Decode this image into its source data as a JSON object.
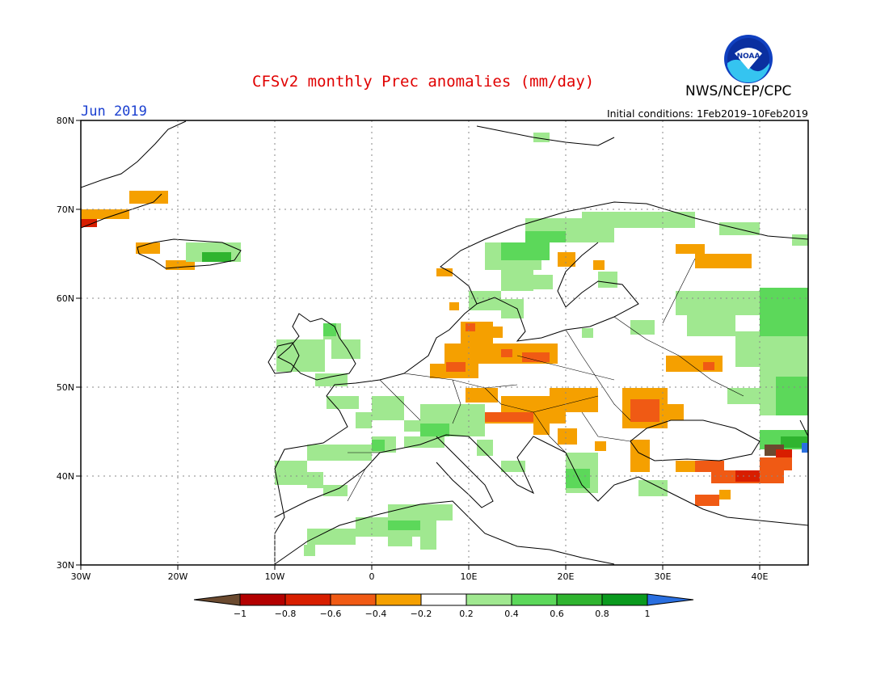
{
  "title": "CFSv2 monthly Prec anomalies (mm/day)",
  "organization": "NWS/NCEP/CPC",
  "logo_text": "NOAA",
  "month": "Jun 2019",
  "initial_conditions": "Initial conditions: 1Feb2019–10Feb2019",
  "map": {
    "lat_labels": [
      "80N",
      "70N",
      "60N",
      "50N",
      "40N",
      "30N"
    ],
    "lon_labels": [
      "30W",
      "20W",
      "10W",
      "0",
      "10E",
      "20E",
      "30E",
      "40E"
    ]
  },
  "colorbar": {
    "tick_labels": [
      "−1",
      "−0.8",
      "−0.6",
      "−0.4",
      "−0.2",
      "0.2",
      "0.4",
      "0.6",
      "0.8",
      "1"
    ],
    "colors": [
      "#6b4a2f",
      "#b30000",
      "#d81e00",
      "#f05a14",
      "#f5a000",
      "#ffffff",
      "#a0e890",
      "#5cd85a",
      "#2fb42f",
      "#0a9a1e",
      "#2a6fe0"
    ]
  },
  "anomaly_colors": {
    "dry_orange": "#f5a000",
    "dry_red": "#f05a14",
    "dry_dark": "#d81e00",
    "wet_light": "#a0e890",
    "wet_mid": "#5cd85a",
    "wet_dark": "#2fb42f",
    "extreme_dry": "#6b4a2f",
    "extreme_wet": "#2a6fe0"
  }
}
